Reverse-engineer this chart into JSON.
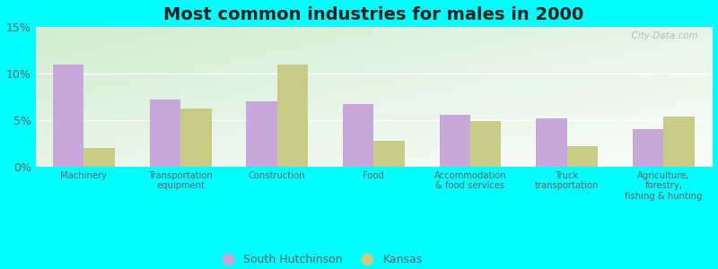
{
  "title": "Most common industries for males in 2000",
  "categories": [
    "Machinery",
    "Transportation\nequipment",
    "Construction",
    "Food",
    "Accommodation\n& food services",
    "Truck\ntransportation",
    "Agriculture,\nforestry,\nfishing & hunting"
  ],
  "south_hutchinson": [
    11.0,
    7.2,
    7.0,
    6.7,
    5.6,
    5.2,
    4.0
  ],
  "kansas": [
    2.0,
    6.3,
    11.0,
    2.8,
    4.9,
    2.2,
    5.4
  ],
  "sh_color": "#c8a8d8",
  "ks_color": "#c8cc88",
  "ylim": [
    0,
    15
  ],
  "yticks": [
    0,
    5,
    10,
    15
  ],
  "ytick_labels": [
    "0%",
    "5%",
    "10%",
    "15%"
  ],
  "legend_sh": "South Hutchinson",
  "legend_ks": "Kansas",
  "bg_outer": "#00ffff",
  "title_fontsize": 14,
  "watermark": "  City-Data.com"
}
